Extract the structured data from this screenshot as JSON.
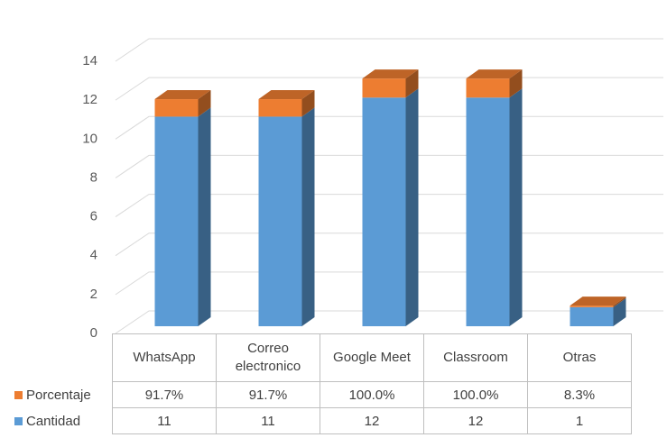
{
  "chart_data": {
    "type": "bar",
    "stacked": true,
    "categories": [
      "WhatsApp",
      "Correo electronico",
      "Google Meet",
      "Classroom",
      "Otras"
    ],
    "series": [
      {
        "name": "Cantidad",
        "color": "#5b9bd5",
        "values": [
          11,
          11,
          12,
          12,
          1
        ]
      },
      {
        "name": "Porcentaje",
        "color": "#ed7d31",
        "values": [
          0.917,
          0.917,
          1.0,
          1.0,
          0.083
        ],
        "value_labels": [
          "91.7%",
          "91.7%",
          "100.0%",
          "100.0%",
          "8.3%"
        ]
      }
    ],
    "ylim": [
      0,
      14
    ],
    "yticks": [
      0,
      2,
      4,
      6,
      8,
      10,
      12,
      14
    ],
    "grid": true,
    "legend": "data-table"
  }
}
